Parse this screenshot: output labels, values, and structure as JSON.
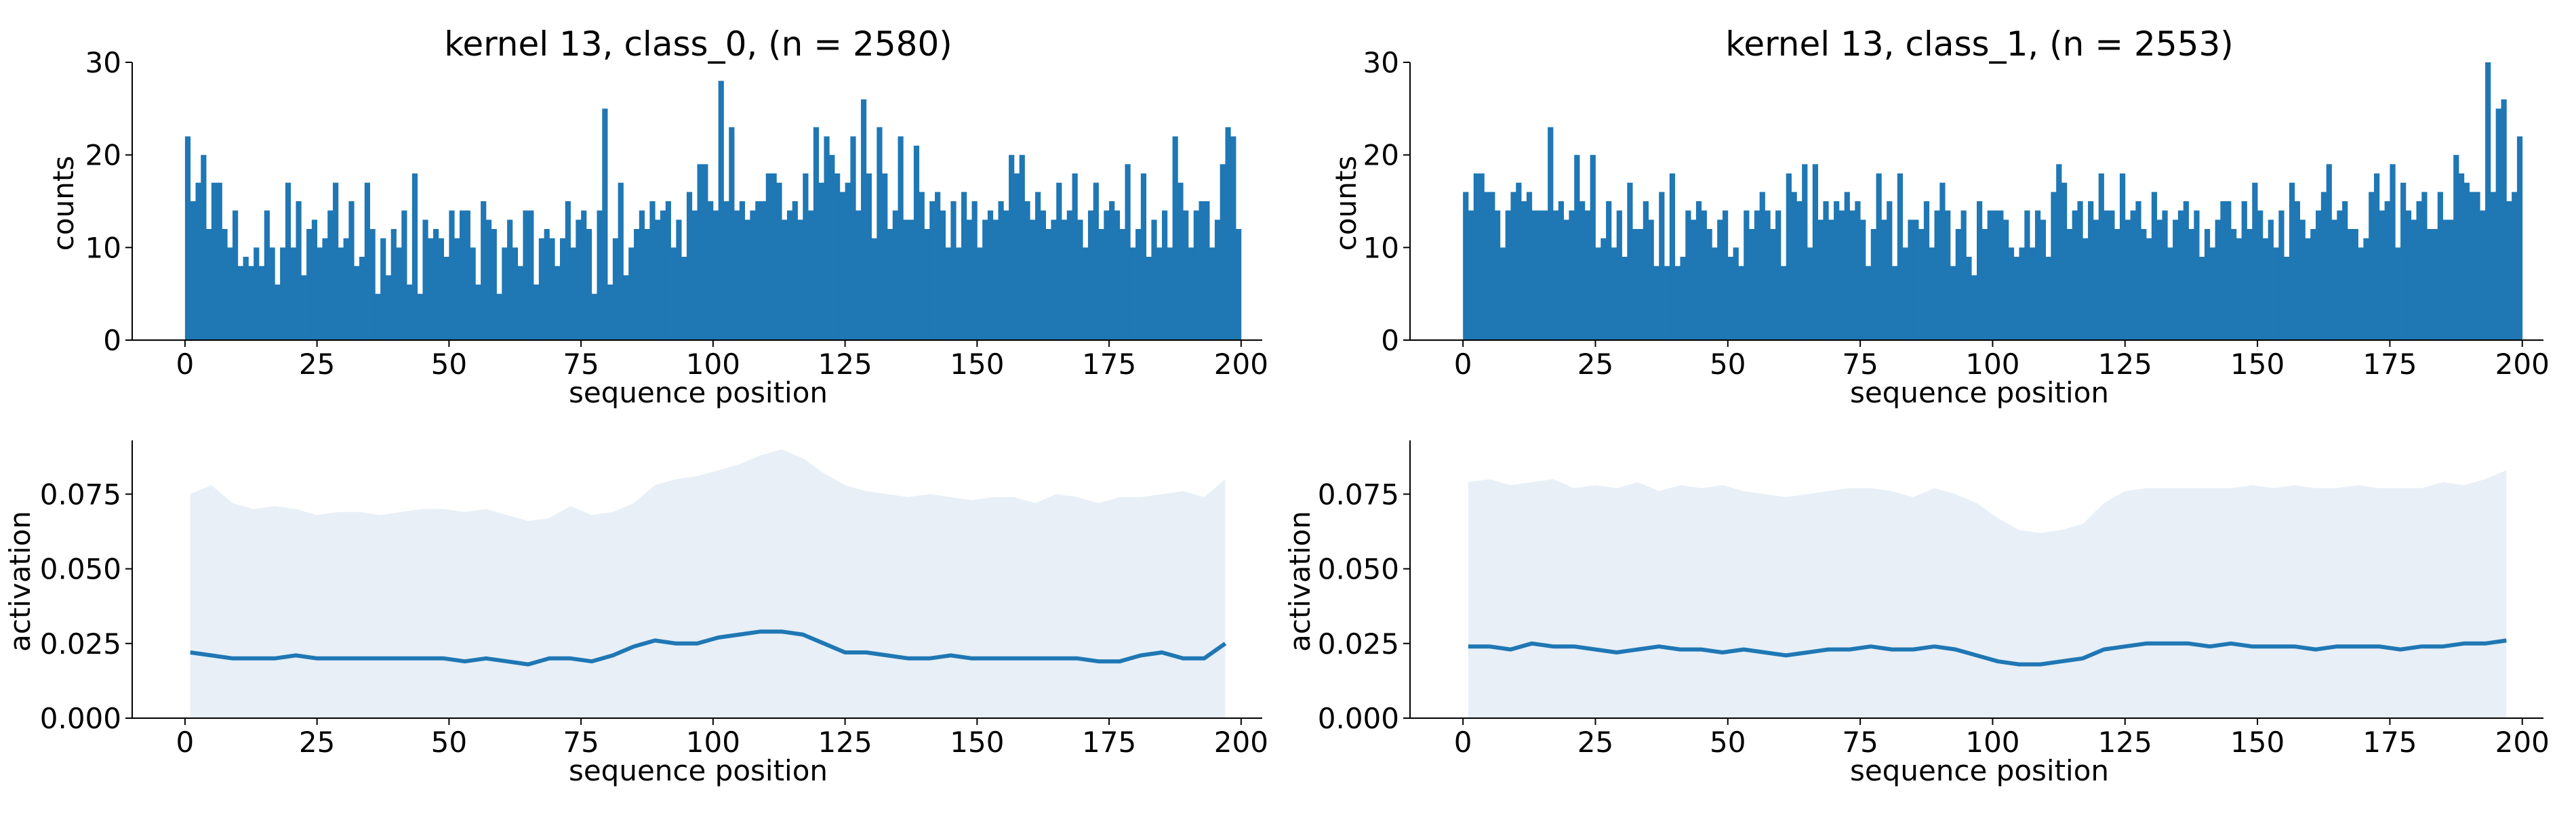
{
  "colors": {
    "bar": "#1f77b4",
    "line": "#1f77b4",
    "band": "#e8eff7"
  },
  "chart_data": [
    {
      "type": "bar",
      "title": "kernel 13, class_0, (n = 2580)",
      "xlabel": "sequence position",
      "ylabel": "counts",
      "xlim": [
        -10,
        204
      ],
      "ylim": [
        0,
        30
      ],
      "xticks": [
        "0",
        "25",
        "50",
        "75",
        "100",
        "125",
        "150",
        "175",
        "200"
      ],
      "yticks": [
        "0",
        "10",
        "20",
        "30"
      ],
      "x_start": 0,
      "values": [
        22,
        15,
        17,
        20,
        12,
        17,
        17,
        12,
        10,
        14,
        8,
        9,
        8,
        10,
        8,
        14,
        10,
        6,
        10,
        17,
        10,
        15,
        7,
        12,
        13,
        10,
        11,
        14,
        17,
        10,
        11,
        15,
        8,
        9,
        17,
        12,
        5,
        11,
        7,
        12,
        10,
        14,
        6,
        18,
        5,
        13,
        11,
        12,
        11,
        9,
        14,
        11,
        14,
        14,
        10,
        6,
        15,
        13,
        12,
        5,
        10,
        13,
        10,
        8,
        14,
        14,
        6,
        11,
        12,
        11,
        8,
        11,
        15,
        10,
        13,
        14,
        12,
        5,
        14,
        25,
        6,
        11,
        17,
        7,
        10,
        12,
        14,
        12,
        15,
        13,
        14,
        15,
        10,
        13,
        9,
        16,
        14,
        19,
        19,
        15,
        14,
        28,
        15,
        23,
        14,
        15,
        13,
        14,
        15,
        15,
        18,
        18,
        17,
        13,
        14,
        15,
        13,
        18,
        14,
        23,
        17,
        22,
        20,
        18,
        16,
        17,
        22,
        14,
        26,
        18,
        11,
        23,
        18,
        12,
        14,
        22,
        13,
        13,
        21,
        16,
        12,
        15,
        16,
        14,
        10,
        15,
        10,
        16,
        13,
        15,
        10,
        13,
        14,
        13,
        15,
        14,
        20,
        18,
        20,
        15,
        13,
        16,
        14,
        12,
        13,
        17,
        13,
        14,
        18,
        13,
        10,
        14,
        17,
        12,
        14,
        15,
        14,
        12,
        19,
        10,
        12,
        18,
        9,
        13,
        10,
        14,
        10,
        22,
        17,
        14,
        10,
        14,
        15,
        15,
        10,
        13,
        19,
        23,
        22,
        12
      ]
    },
    {
      "type": "bar",
      "title": "kernel 13, class_1, (n = 2553)",
      "xlabel": "sequence position",
      "ylabel": "counts",
      "xlim": [
        -10,
        204
      ],
      "ylim": [
        0,
        30
      ],
      "xticks": [
        "0",
        "25",
        "50",
        "75",
        "100",
        "125",
        "150",
        "175",
        "200"
      ],
      "yticks": [
        "0",
        "10",
        "20",
        "30"
      ],
      "x_start": 0,
      "values": [
        16,
        14,
        18,
        18,
        16,
        16,
        14,
        10,
        14,
        16,
        17,
        15,
        16,
        14,
        14,
        14,
        23,
        14,
        15,
        13,
        14,
        20,
        15,
        14,
        20,
        10,
        11,
        15,
        10,
        14,
        9,
        17,
        12,
        12,
        15,
        13,
        8,
        16,
        8,
        18,
        8,
        9,
        14,
        13,
        15,
        14,
        12,
        10,
        13,
        14,
        9,
        10,
        8,
        14,
        12,
        14,
        16,
        14,
        12,
        14,
        8,
        18,
        16,
        15,
        19,
        10,
        19,
        13,
        15,
        13,
        15,
        14,
        16,
        14,
        15,
        13,
        8,
        12,
        18,
        13,
        15,
        8,
        18,
        10,
        13,
        13,
        12,
        15,
        10,
        14,
        17,
        14,
        8,
        12,
        14,
        9,
        7,
        15,
        12,
        14,
        14,
        14,
        13,
        10,
        9,
        10,
        14,
        10,
        14,
        13,
        9,
        16,
        19,
        17,
        12,
        14,
        15,
        11,
        15,
        13,
        18,
        14,
        14,
        12,
        18,
        13,
        14,
        15,
        12,
        11,
        16,
        13,
        14,
        10,
        13,
        14,
        15,
        12,
        14,
        9,
        12,
        10,
        13,
        15,
        15,
        12,
        11,
        15,
        12,
        17,
        14,
        11,
        13,
        10,
        14,
        9,
        17,
        15,
        13,
        11,
        12,
        14,
        16,
        19,
        13,
        14,
        15,
        12,
        12,
        10,
        11,
        16,
        18,
        14,
        15,
        19,
        10,
        17,
        14,
        13,
        15,
        16,
        12,
        12,
        16,
        13,
        13,
        20,
        18,
        17,
        16,
        16,
        14,
        30,
        16,
        25,
        26,
        15,
        16,
        22
      ]
    },
    {
      "type": "area",
      "xlabel": "sequence position",
      "ylabel": "activation",
      "xlim": [
        -10,
        204
      ],
      "ylim": [
        0,
        0.093
      ],
      "xticks": [
        "0",
        "25",
        "50",
        "75",
        "100",
        "125",
        "150",
        "175",
        "200"
      ],
      "yticks": [
        "0.000",
        "0.025",
        "0.050",
        "0.075"
      ],
      "series": [
        {
          "x_start": 1,
          "x_step": 4,
          "mean": [
            0.022,
            0.021,
            0.02,
            0.02,
            0.02,
            0.021,
            0.02,
            0.02,
            0.02,
            0.02,
            0.02,
            0.02,
            0.02,
            0.019,
            0.02,
            0.019,
            0.018,
            0.02,
            0.02,
            0.019,
            0.021,
            0.024,
            0.026,
            0.025,
            0.025,
            0.027,
            0.028,
            0.029,
            0.029,
            0.028,
            0.025,
            0.022,
            0.022,
            0.021,
            0.02,
            0.02,
            0.021,
            0.02,
            0.02,
            0.02,
            0.02,
            0.02,
            0.02,
            0.019,
            0.019,
            0.021,
            0.022,
            0.02,
            0.02,
            0.025
          ],
          "upper": [
            0.075,
            0.078,
            0.072,
            0.07,
            0.071,
            0.07,
            0.068,
            0.069,
            0.069,
            0.068,
            0.069,
            0.07,
            0.07,
            0.069,
            0.07,
            0.068,
            0.066,
            0.067,
            0.071,
            0.068,
            0.069,
            0.072,
            0.078,
            0.08,
            0.081,
            0.083,
            0.085,
            0.088,
            0.09,
            0.087,
            0.082,
            0.078,
            0.076,
            0.075,
            0.074,
            0.075,
            0.074,
            0.073,
            0.074,
            0.074,
            0.072,
            0.075,
            0.074,
            0.072,
            0.074,
            0.074,
            0.075,
            0.076,
            0.074,
            0.08
          ]
        }
      ]
    },
    {
      "type": "area",
      "xlabel": "sequence position",
      "ylabel": "activation",
      "xlim": [
        -10,
        204
      ],
      "ylim": [
        0,
        0.093
      ],
      "xticks": [
        "0",
        "25",
        "50",
        "75",
        "100",
        "125",
        "150",
        "175",
        "200"
      ],
      "yticks": [
        "0.000",
        "0.025",
        "0.050",
        "0.075"
      ],
      "series": [
        {
          "x_start": 1,
          "x_step": 4,
          "mean": [
            0.024,
            0.024,
            0.023,
            0.025,
            0.024,
            0.024,
            0.023,
            0.022,
            0.023,
            0.024,
            0.023,
            0.023,
            0.022,
            0.023,
            0.022,
            0.021,
            0.022,
            0.023,
            0.023,
            0.024,
            0.023,
            0.023,
            0.024,
            0.023,
            0.021,
            0.019,
            0.018,
            0.018,
            0.019,
            0.02,
            0.023,
            0.024,
            0.025,
            0.025,
            0.025,
            0.024,
            0.025,
            0.024,
            0.024,
            0.024,
            0.023,
            0.024,
            0.024,
            0.024,
            0.023,
            0.024,
            0.024,
            0.025,
            0.025,
            0.026
          ],
          "upper": [
            0.079,
            0.08,
            0.078,
            0.079,
            0.08,
            0.077,
            0.078,
            0.077,
            0.079,
            0.076,
            0.078,
            0.077,
            0.078,
            0.076,
            0.075,
            0.074,
            0.075,
            0.076,
            0.077,
            0.077,
            0.076,
            0.074,
            0.077,
            0.075,
            0.072,
            0.067,
            0.063,
            0.062,
            0.063,
            0.065,
            0.072,
            0.076,
            0.077,
            0.077,
            0.077,
            0.077,
            0.077,
            0.078,
            0.077,
            0.078,
            0.077,
            0.077,
            0.078,
            0.077,
            0.077,
            0.077,
            0.079,
            0.078,
            0.08,
            0.083
          ]
        }
      ]
    }
  ]
}
